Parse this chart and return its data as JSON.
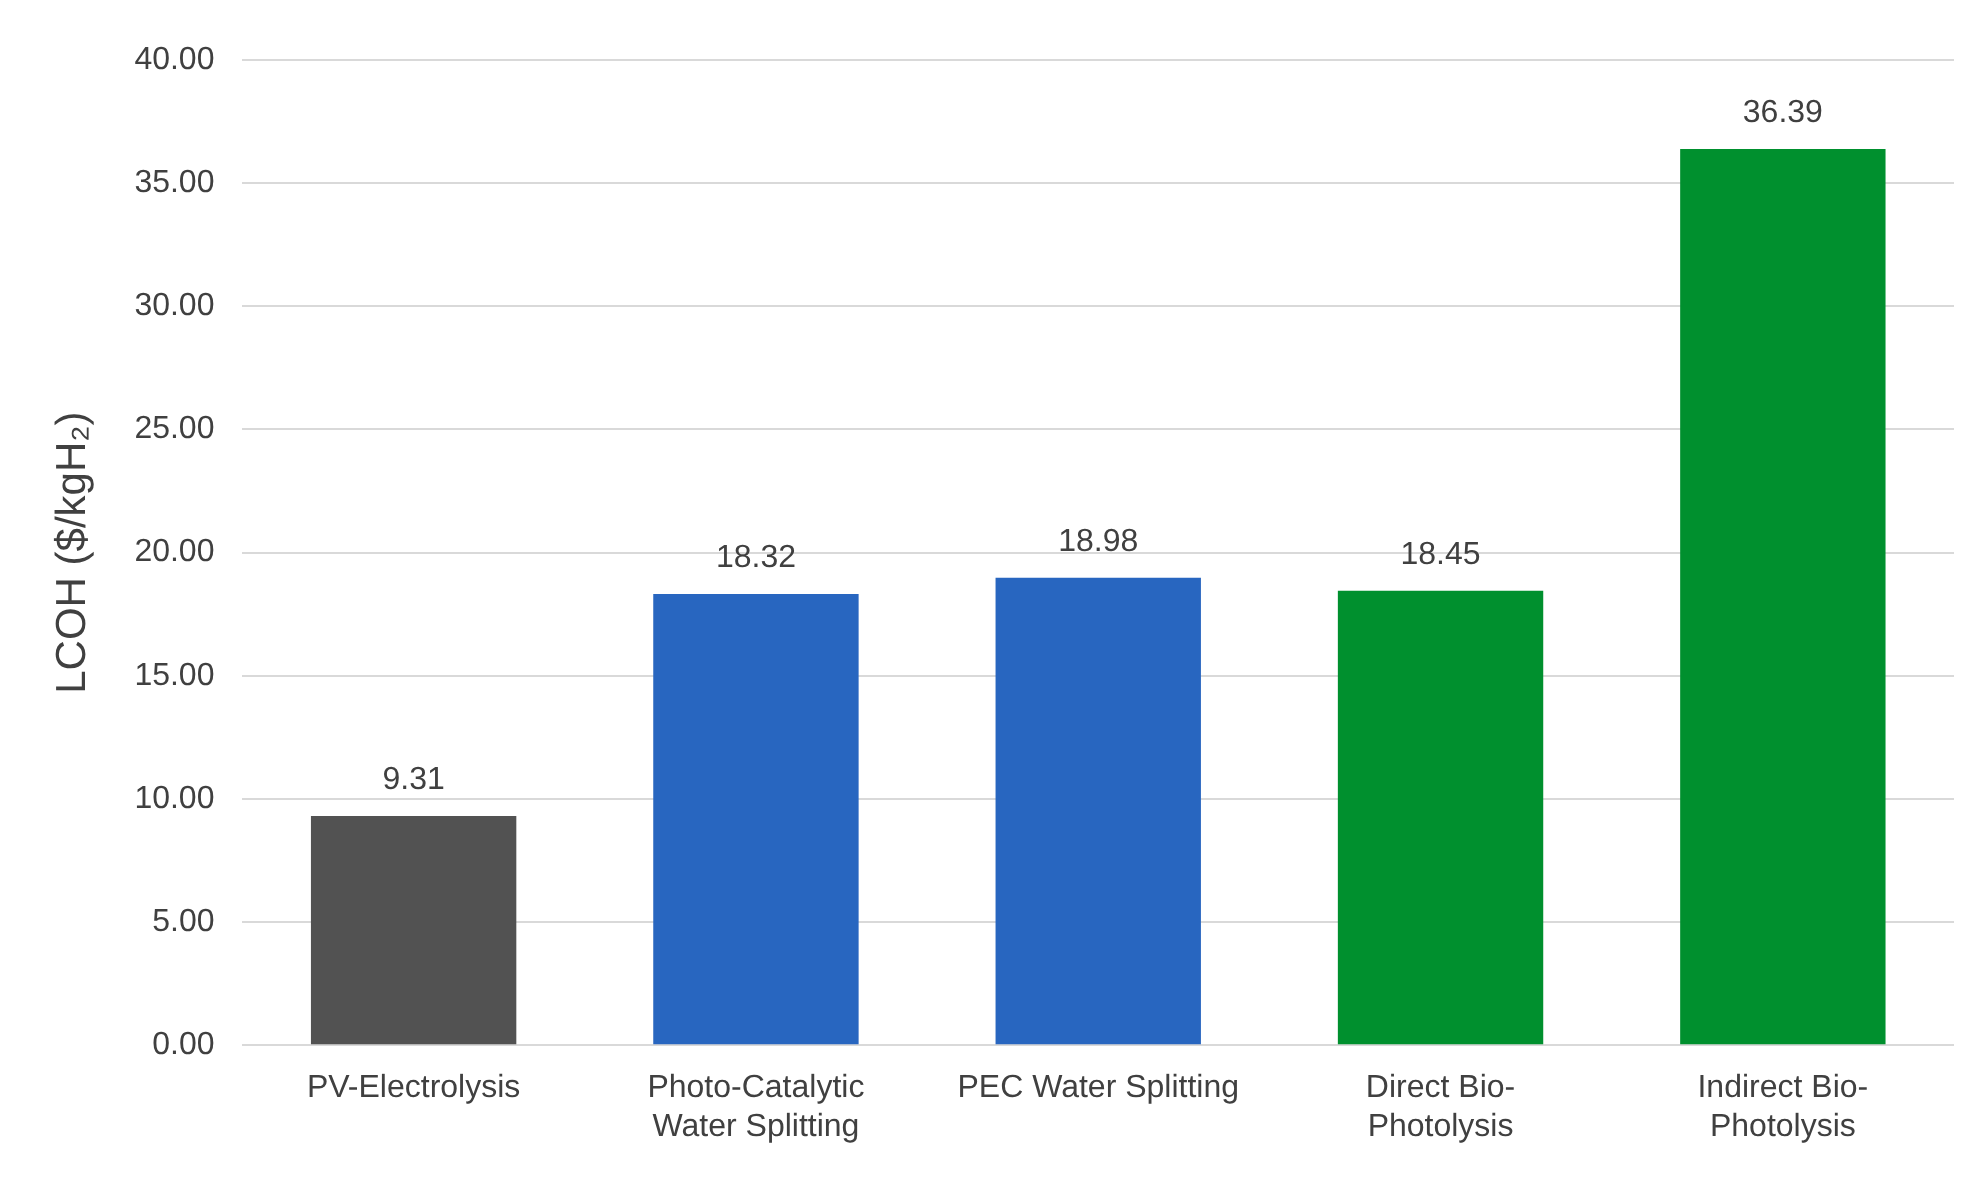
{
  "chart_data": {
    "type": "bar",
    "ylabel": "LCOH ($/kgH₂)",
    "categories": [
      "PV-Electrolysis",
      "Photo-Catalytic Water Splitting",
      "PEC Water Splitting",
      "Direct Bio-Photolysis",
      "Indirect Bio-Photolysis"
    ],
    "values": [
      9.31,
      18.32,
      18.98,
      18.45,
      36.39
    ],
    "colors": [
      "#525252",
      "#2866c0",
      "#2866c0",
      "#00902e",
      "#00902e"
    ],
    "ylim": [
      0,
      40
    ],
    "yticks": [
      {
        "value": 0,
        "label": "0.00"
      },
      {
        "value": 5,
        "label": "5.00"
      },
      {
        "value": 10,
        "label": "10.00"
      },
      {
        "value": 15,
        "label": "15.00"
      },
      {
        "value": 20,
        "label": "20.00"
      },
      {
        "value": 25,
        "label": "25.00"
      },
      {
        "value": 30,
        "label": "30.00"
      },
      {
        "value": 35,
        "label": "35.00"
      },
      {
        "value": 40,
        "label": "40.00"
      }
    ],
    "grid": "y",
    "data_labels": true,
    "legend": false
  }
}
